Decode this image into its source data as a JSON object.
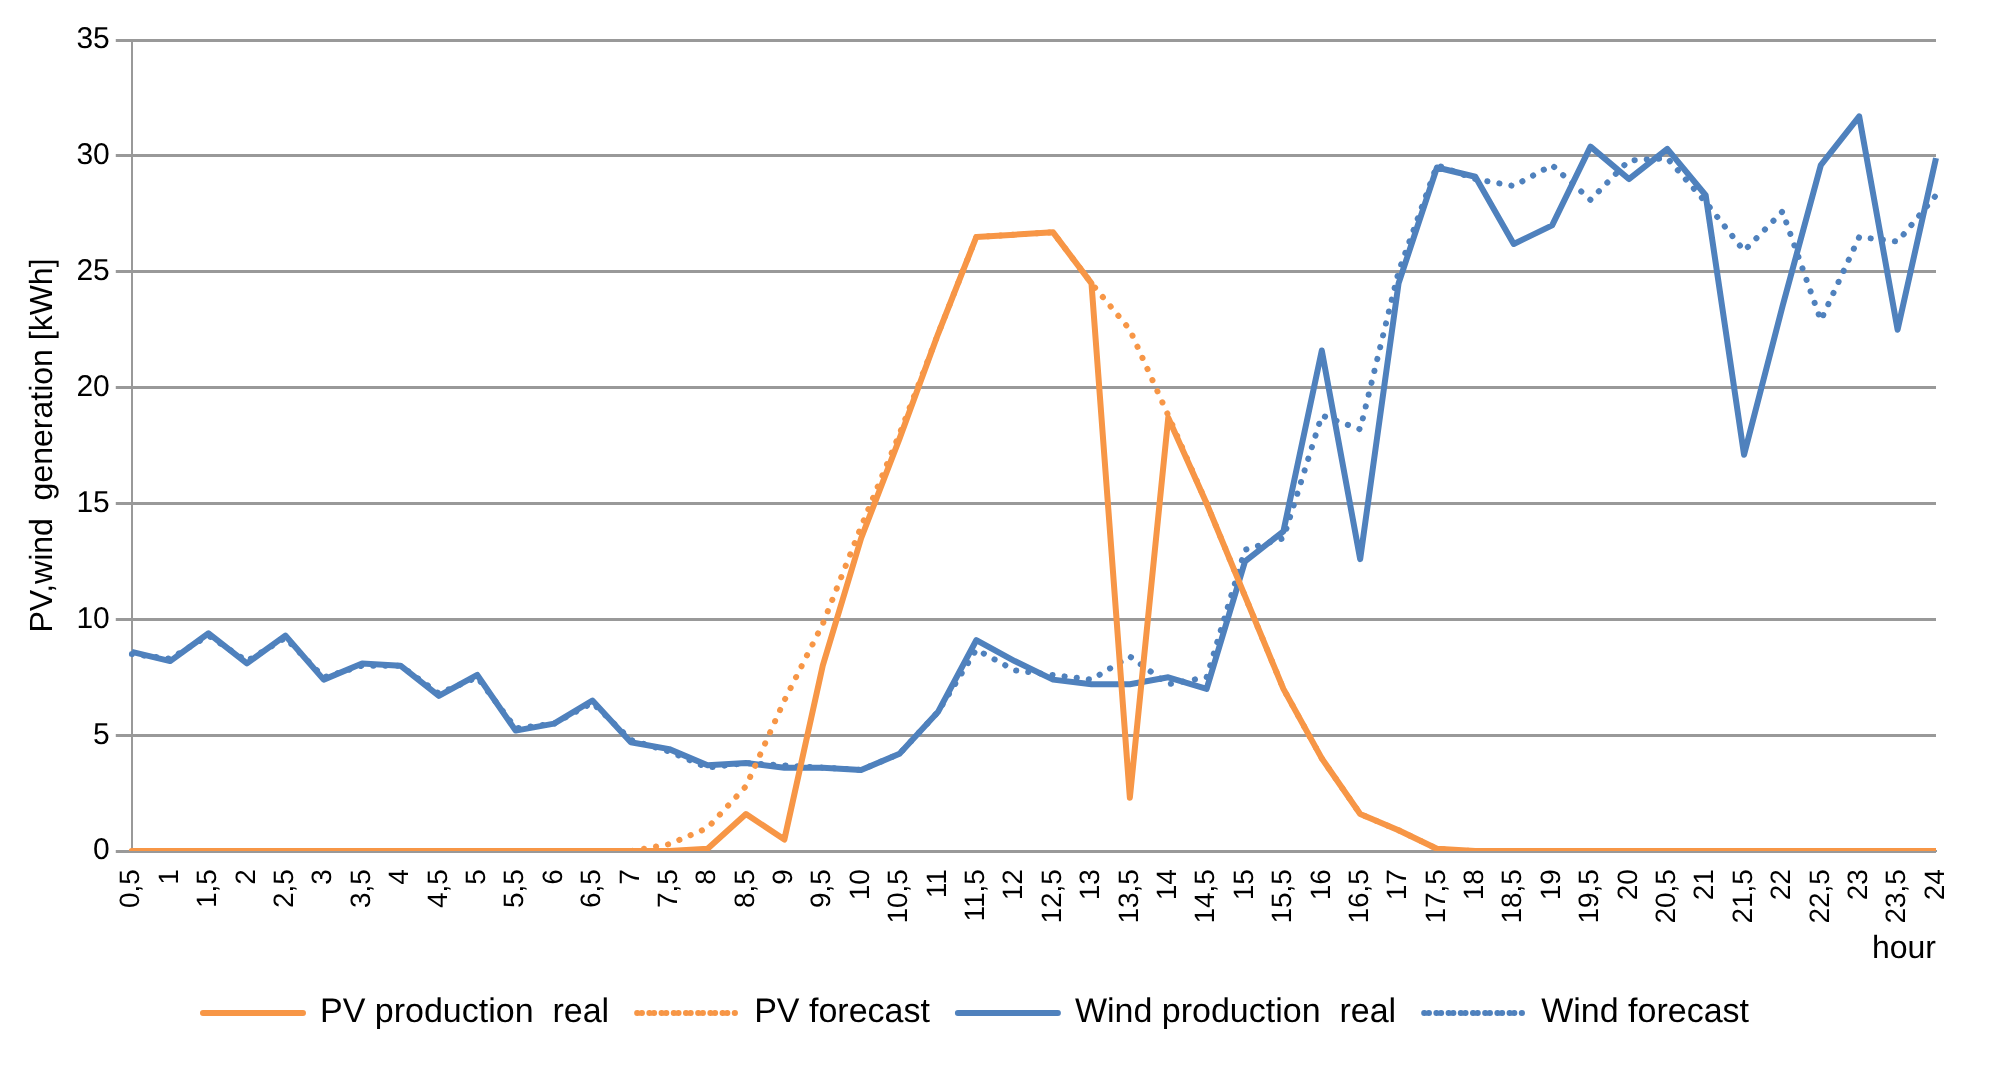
{
  "chart_data": {
    "type": "line",
    "ylabel": "PV,wind  generation [kWh]",
    "xlabel": "hour",
    "categories": [
      "0,5",
      "1",
      "1,5",
      "2",
      "2,5",
      "3",
      "3,5",
      "4",
      "4,5",
      "5",
      "5,5",
      "6",
      "6,5",
      "7",
      "7,5",
      "8",
      "8,5",
      "9",
      "9,5",
      "10",
      "10,5",
      "11",
      "11,5",
      "12",
      "12,5",
      "13",
      "13,5",
      "14",
      "14,5",
      "15",
      "15,5",
      "16",
      "16,5",
      "17",
      "17,5",
      "18",
      "18,5",
      "19",
      "19,5",
      "20",
      "20,5",
      "21",
      "21,5",
      "22",
      "22,5",
      "23",
      "23,5",
      "24"
    ],
    "series": [
      {
        "name": "PV production  real",
        "color": "#f79646",
        "line_style": "solid",
        "values": [
          0,
          0,
          0,
          0,
          0,
          0,
          0,
          0,
          0,
          0,
          0,
          0,
          0,
          0,
          0,
          0.1,
          1.6,
          0.5,
          8.0,
          13.5,
          17.8,
          22.3,
          26.5,
          26.6,
          26.7,
          24.5,
          2.3,
          18.7,
          15.0,
          11.0,
          7.0,
          4.0,
          1.6,
          0.9,
          0.1,
          0,
          0,
          0,
          0,
          0,
          0,
          0,
          0,
          0,
          0,
          0,
          0,
          0
        ]
      },
      {
        "name": "PV forecast",
        "color": "#f79646",
        "line_style": "dotted",
        "values": [
          0,
          0,
          0,
          0,
          0,
          0,
          0,
          0,
          0,
          0,
          0,
          0,
          0,
          0,
          0.3,
          1.0,
          2.8,
          6.5,
          9.8,
          14.0,
          18.0,
          22.3,
          26.5,
          26.6,
          26.7,
          24.5,
          22.5,
          18.8,
          15.0,
          11.0,
          7.0,
          4.0,
          1.6,
          0.9,
          0.1,
          0,
          0,
          0,
          0,
          0,
          0,
          0,
          0,
          0,
          0,
          0,
          0,
          0
        ]
      },
      {
        "name": "Wind production  real",
        "color": "#4f81bd",
        "line_style": "solid",
        "values": [
          8.6,
          8.2,
          9.4,
          8.1,
          9.3,
          7.4,
          8.1,
          8.0,
          6.7,
          7.6,
          5.2,
          5.5,
          6.5,
          4.7,
          4.4,
          3.7,
          3.8,
          3.6,
          3.6,
          3.5,
          4.2,
          6.0,
          9.1,
          8.2,
          7.4,
          7.2,
          7.2,
          7.5,
          7.0,
          12.5,
          13.8,
          21.6,
          12.6,
          24.5,
          29.5,
          29.1,
          26.2,
          27.0,
          30.4,
          29.0,
          30.3,
          28.3,
          17.1,
          23.5,
          29.6,
          31.7,
          22.5,
          29.9
        ]
      },
      {
        "name": "Wind forecast",
        "color": "#4f81bd",
        "line_style": "dotted",
        "values": [
          8.5,
          8.3,
          9.3,
          8.2,
          9.2,
          7.5,
          8.0,
          8.0,
          6.8,
          7.5,
          5.3,
          5.5,
          6.4,
          4.8,
          4.3,
          3.6,
          3.8,
          3.7,
          3.6,
          3.5,
          4.2,
          6.0,
          8.7,
          7.8,
          7.6,
          7.4,
          8.4,
          7.2,
          7.5,
          13.0,
          13.5,
          18.8,
          18.2,
          25.0,
          29.6,
          29.0,
          28.7,
          29.6,
          28.1,
          29.8,
          29.9,
          28.0,
          25.9,
          27.6,
          22.9,
          26.5,
          26.3,
          28.3
        ]
      }
    ],
    "ylim": [
      0,
      35
    ],
    "yticks": [
      0,
      5,
      10,
      15,
      20,
      25,
      30,
      35
    ],
    "grid": "y",
    "legend": "bottom",
    "marker": "none"
  }
}
